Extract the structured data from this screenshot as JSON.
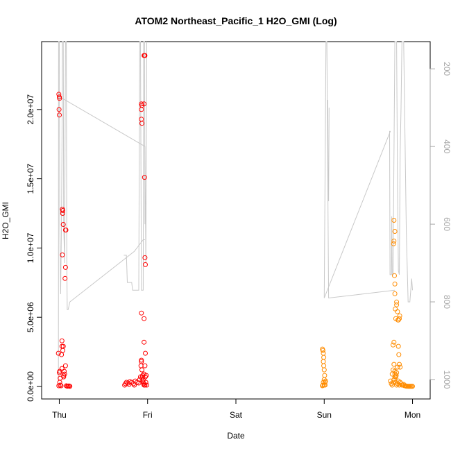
{
  "chart_data": {
    "type": "scatter",
    "title": "ATOM2 Northeast_Pacific_1 H2O_GMI (Log)",
    "xlabel": "Date",
    "ylabel": "H2O_GMI",
    "x_ticks": [
      {
        "day": 0,
        "label": "Thu"
      },
      {
        "day": 1,
        "label": "Fri"
      },
      {
        "day": 2,
        "label": "Sat"
      },
      {
        "day": 3,
        "label": "Sun"
      },
      {
        "day": 4,
        "label": "Mon"
      }
    ],
    "xlim": [
      -0.2,
      4.2
    ],
    "ylim": [
      -900000,
      24900000
    ],
    "y_ticks": [
      {
        "value": 0,
        "label": "0.0e+00"
      },
      {
        "value": 5000000,
        "label": "5.0e+06"
      },
      {
        "value": 10000000,
        "label": "1.0e+07"
      },
      {
        "value": 15000000,
        "label": "1.5e+07"
      },
      {
        "value": 20000000,
        "label": "2.0e+07"
      }
    ],
    "y2_axis": {
      "reversed": true,
      "lim": [
        130,
        1050
      ],
      "ticks": [
        {
          "value": 200,
          "label": "200"
        },
        {
          "value": 400,
          "label": "400"
        },
        {
          "value": 600,
          "label": "600"
        },
        {
          "value": 800,
          "label": "800"
        },
        {
          "value": 1000,
          "label": "1000"
        }
      ]
    },
    "grid": false,
    "legend": "none",
    "series": [
      {
        "color": "#ff0000",
        "points": [
          [
            -0.005,
            21100000
          ],
          [
            0.0,
            20900000
          ],
          [
            0.003,
            20800000
          ],
          [
            -0.003,
            20000000
          ],
          [
            0.0,
            19600000
          ],
          [
            -0.01,
            2400000
          ],
          [
            0.005,
            1100000
          ],
          [
            0.0,
            1000000
          ],
          [
            0.01,
            600000
          ],
          [
            0.005,
            300000
          ],
          [
            0.01,
            100000
          ],
          [
            0.02,
            50000
          ],
          [
            0.035,
            12800000
          ],
          [
            0.04,
            12700000
          ],
          [
            0.038,
            12500000
          ],
          [
            0.045,
            11700000
          ],
          [
            0.035,
            9500000
          ],
          [
            0.03,
            3300000
          ],
          [
            0.03,
            2900000
          ],
          [
            0.025,
            2300000
          ],
          [
            0.03,
            1300000
          ],
          [
            0.04,
            2600000
          ],
          [
            0.045,
            2900000
          ],
          [
            0.05,
            700000
          ],
          [
            0.055,
            1100000
          ],
          [
            0.05,
            800000
          ],
          [
            0.06,
            900000
          ],
          [
            0.07,
            11300000
          ],
          [
            0.075,
            11300000
          ],
          [
            0.07,
            8600000
          ],
          [
            0.065,
            7800000
          ],
          [
            0.07,
            1500000
          ],
          [
            0.08,
            50000
          ],
          [
            0.09,
            20000
          ],
          [
            0.1,
            30000
          ],
          [
            0.11,
            40000
          ],
          [
            0.12,
            10000
          ],
          [
            -0.005,
            50000
          ]
        ]
      },
      {
        "color": "#ff0000",
        "points": [
          [
            0.74,
            100000
          ],
          [
            0.75,
            200000
          ],
          [
            0.76,
            300000
          ],
          [
            0.78,
            250000
          ],
          [
            0.79,
            150000
          ],
          [
            0.8,
            350000
          ],
          [
            0.82,
            300000
          ],
          [
            0.84,
            200000
          ],
          [
            0.85,
            100000
          ],
          [
            0.86,
            400000
          ],
          [
            0.88,
            300000
          ],
          [
            0.9,
            250000
          ],
          [
            0.91,
            500000
          ],
          [
            0.92,
            700000
          ],
          [
            0.925,
            1500000
          ],
          [
            0.93,
            1800000
          ],
          [
            0.93,
            1900000
          ],
          [
            0.935,
            1200000
          ],
          [
            0.94,
            400000
          ],
          [
            0.95,
            300000
          ],
          [
            0.94,
            700000
          ],
          [
            0.945,
            800000
          ],
          [
            0.95,
            500000
          ],
          [
            0.955,
            200000
          ],
          [
            0.96,
            100000
          ],
          [
            0.97,
            100000
          ],
          [
            0.975,
            700000
          ],
          [
            0.98,
            300000
          ],
          [
            0.985,
            800000
          ],
          [
            0.99,
            100000
          ],
          [
            0.93,
            5300000
          ],
          [
            0.96,
            4900000
          ],
          [
            0.96,
            3200000
          ],
          [
            0.975,
            2400000
          ],
          [
            0.97,
            1500000
          ],
          [
            0.96,
            900000
          ],
          [
            0.97,
            9300000
          ],
          [
            0.975,
            8800000
          ],
          [
            0.965,
            15100000
          ],
          [
            0.93,
            20400000
          ],
          [
            0.935,
            20300000
          ],
          [
            0.93,
            20000000
          ],
          [
            0.96,
            20400000
          ],
          [
            0.93,
            19300000
          ],
          [
            0.935,
            19000000
          ],
          [
            0.96,
            23900000
          ],
          [
            0.965,
            23900000
          ],
          [
            0.97,
            23900000
          ]
        ]
      },
      {
        "color": "#ff8c00",
        "points": [
          [
            2.98,
            2700000
          ],
          [
            2.985,
            2600000
          ],
          [
            2.99,
            2400000
          ],
          [
            2.995,
            2100000
          ],
          [
            2.99,
            1800000
          ],
          [
            2.995,
            1500000
          ],
          [
            3.0,
            1200000
          ],
          [
            3.005,
            800000
          ],
          [
            3.0,
            500000
          ],
          [
            2.99,
            300000
          ],
          [
            2.985,
            100000
          ],
          [
            3.0,
            100000
          ],
          [
            3.01,
            300000
          ],
          [
            3.015,
            400000
          ],
          [
            3.01,
            100000
          ],
          [
            2.98,
            50000
          ]
        ]
      },
      {
        "color": "#ff8c00",
        "points": [
          [
            3.75,
            400000
          ],
          [
            3.76,
            200000
          ],
          [
            3.77,
            100000
          ],
          [
            3.78,
            300000
          ],
          [
            3.79,
            500000
          ],
          [
            3.77,
            900000
          ],
          [
            3.78,
            1200000
          ],
          [
            3.79,
            1600000
          ],
          [
            3.8,
            700000
          ],
          [
            3.81,
            300000
          ],
          [
            3.82,
            100000
          ],
          [
            3.83,
            200000
          ],
          [
            3.84,
            400000
          ],
          [
            3.85,
            100000
          ],
          [
            3.86,
            300000
          ],
          [
            3.87,
            200000
          ],
          [
            3.88,
            100000
          ],
          [
            3.89,
            100000
          ],
          [
            3.9,
            150000
          ],
          [
            3.91,
            50000
          ],
          [
            3.92,
            50000
          ],
          [
            3.93,
            20000
          ],
          [
            3.94,
            20000
          ],
          [
            3.95,
            10000
          ],
          [
            3.96,
            10000
          ],
          [
            3.97,
            10000
          ],
          [
            3.98,
            10000
          ],
          [
            3.99,
            10000
          ],
          [
            4.0,
            10000
          ],
          [
            3.79,
            12000000
          ],
          [
            3.8,
            11200000
          ],
          [
            3.79,
            10500000
          ],
          [
            3.785,
            10300000
          ],
          [
            3.795,
            8000000
          ],
          [
            3.8,
            7400000
          ],
          [
            3.78,
            3000000
          ],
          [
            3.79,
            3200000
          ],
          [
            3.8,
            6700000
          ],
          [
            3.805,
            5600000
          ],
          [
            3.81,
            4900000
          ],
          [
            3.82,
            5900000
          ],
          [
            3.82,
            6100000
          ],
          [
            3.83,
            5400000
          ],
          [
            3.835,
            4800000
          ],
          [
            3.84,
            4800000
          ],
          [
            3.855,
            5100000
          ],
          [
            3.85,
            4900000
          ],
          [
            3.84,
            2900000
          ],
          [
            3.85,
            1600000
          ],
          [
            3.86,
            1400000
          ],
          [
            3.845,
            2300000
          ],
          [
            3.83,
            1400000
          ],
          [
            3.82,
            1000000
          ],
          [
            3.815,
            800000
          ],
          [
            3.81,
            700000
          ],
          [
            3.8,
            900000
          ],
          [
            3.8,
            1100000
          ]
        ]
      }
    ],
    "overlay": {
      "color": "#c8c8c8",
      "axis": "right",
      "segments": [
        [
          [
            -0.01,
            1000
          ],
          [
            -0.008,
            130
          ],
          [
            0.0,
            130
          ],
          [
            0.005,
            600
          ],
          [
            0.015,
            780
          ],
          [
            0.025,
            600
          ],
          [
            0.03,
            400
          ],
          [
            0.035,
            130
          ],
          [
            0.045,
            130
          ],
          [
            0.05,
            600
          ],
          [
            0.06,
            700
          ],
          [
            0.07,
            130
          ],
          [
            0.08,
            130
          ],
          [
            0.085,
            700
          ],
          [
            0.09,
            820
          ],
          [
            0.1,
            820
          ],
          [
            0.12,
            800
          ],
          [
            0.85,
            670
          ],
          [
            0.95,
            640
          ],
          [
            0.97,
            640
          ]
        ],
        [
          [
            -0.01,
            270
          ],
          [
            0.97,
            400
          ],
          [
            0.98,
            700
          ],
          [
            0.99,
            130
          ]
        ],
        [
          [
            0.73,
            680
          ],
          [
            0.76,
            680
          ],
          [
            0.77,
            750
          ],
          [
            0.82,
            750
          ],
          [
            0.83,
            770
          ],
          [
            0.9,
            770
          ],
          [
            0.91,
            130
          ],
          [
            0.92,
            130
          ],
          [
            0.93,
            770
          ],
          [
            0.95,
            770
          ],
          [
            0.955,
            130
          ],
          [
            0.965,
            130
          ],
          [
            0.97,
            600
          ]
        ],
        [
          [
            3.0,
            790
          ],
          [
            3.02,
            130
          ],
          [
            3.03,
            130
          ],
          [
            3.05,
            790
          ],
          [
            3.8,
            770
          ]
        ],
        [
          [
            3.04,
            280
          ],
          [
            3.045,
            540
          ],
          [
            3.05,
            540
          ],
          [
            3.055,
            300
          ]
        ],
        [
          [
            3.0,
            790
          ],
          [
            3.75,
            360
          ]
        ],
        [
          [
            3.74,
            360
          ],
          [
            3.745,
            730
          ],
          [
            3.76,
            730
          ],
          [
            3.765,
            580
          ],
          [
            3.77,
            730
          ],
          [
            3.78,
            730
          ],
          [
            3.79,
            420
          ],
          [
            3.8,
            130
          ],
          [
            3.82,
            130
          ],
          [
            3.83,
            500
          ],
          [
            3.84,
            720
          ],
          [
            3.85,
            730
          ],
          [
            3.86,
            420
          ],
          [
            3.87,
            300
          ],
          [
            3.88,
            130
          ],
          [
            3.9,
            130
          ],
          [
            3.93,
            620
          ],
          [
            3.95,
            800
          ],
          [
            3.97,
            800
          ],
          [
            3.99,
            740
          ],
          [
            4.0,
            770
          ]
        ]
      ]
    }
  }
}
